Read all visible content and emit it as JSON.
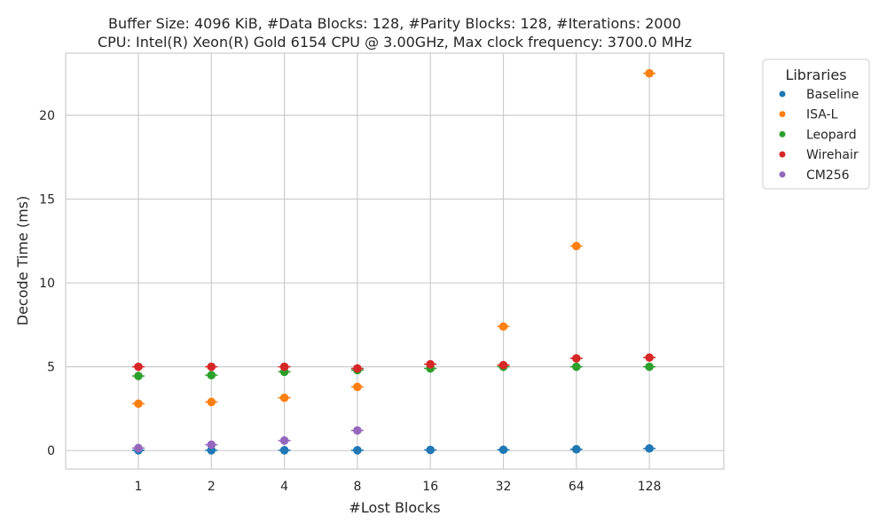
{
  "chart_data": {
    "type": "scatter",
    "title_lines": [
      "Buffer Size: 4096 KiB, #Data Blocks: 128, #Parity Blocks: 128, #Iterations: 2000",
      "CPU: Intel(R) Xeon(R) Gold 6154 CPU @ 3.00GHz, Max clock frequency: 3700.0 MHz"
    ],
    "xlabel": "#Lost Blocks",
    "ylabel": "Decode Time (ms)",
    "categories": [
      "1",
      "2",
      "4",
      "8",
      "16",
      "32",
      "64",
      "128"
    ],
    "ylim": [
      -1.1,
      23.7
    ],
    "yticks": [
      0,
      5,
      10,
      15,
      20
    ],
    "grid": true,
    "legend": {
      "title": "Libraries",
      "placement": "outside-top-right"
    },
    "series": [
      {
        "name": "Baseline",
        "color": "#1f77b4",
        "values": [
          0.02,
          0.02,
          0.02,
          0.02,
          0.04,
          0.05,
          0.08,
          0.13
        ]
      },
      {
        "name": "ISA-L",
        "color": "#ff7f0e",
        "values": [
          2.8,
          2.9,
          3.15,
          3.8,
          null,
          7.4,
          12.2,
          22.5
        ]
      },
      {
        "name": "Leopard",
        "color": "#2ca02c",
        "values": [
          4.45,
          4.5,
          4.7,
          4.8,
          4.9,
          5.0,
          5.0,
          5.0
        ]
      },
      {
        "name": "Wirehair",
        "color": "#d62728",
        "values": [
          5.0,
          5.0,
          5.0,
          4.9,
          5.15,
          5.1,
          5.5,
          5.55
        ]
      },
      {
        "name": "CM256",
        "color": "#9467bd",
        "values": [
          0.15,
          0.35,
          0.6,
          1.2,
          null,
          null,
          null,
          null
        ]
      }
    ]
  }
}
